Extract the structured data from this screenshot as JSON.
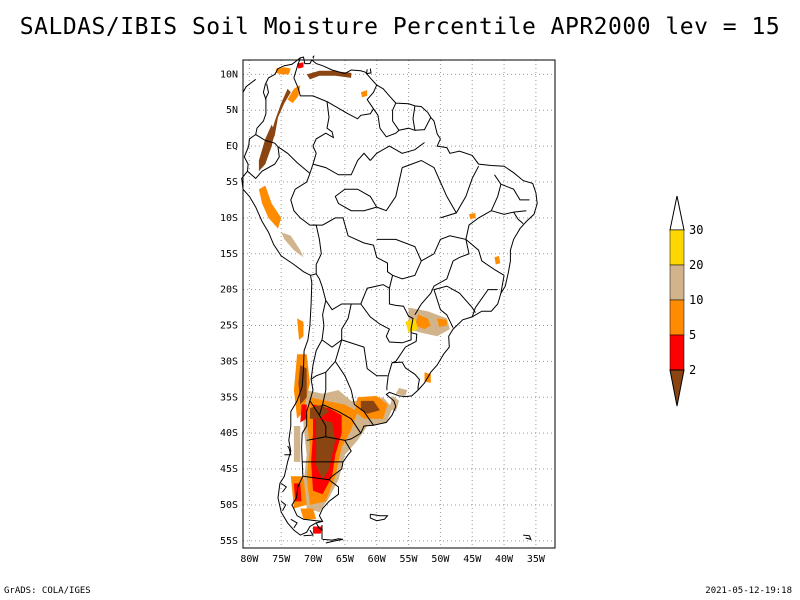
{
  "title": "SALDAS/IBIS Soil Moisture Percentile APR2000 lev = 15",
  "footer": {
    "left": "GrADS: COLA/IGES",
    "right": "2021-05-12-19:18"
  },
  "axes": {
    "lat_ticks": [
      "10N",
      "5N",
      "EQ",
      "5S",
      "10S",
      "15S",
      "20S",
      "25S",
      "30S",
      "35S",
      "40S",
      "45S",
      "50S",
      "55S"
    ],
    "lon_ticks": [
      "80W",
      "75W",
      "70W",
      "65W",
      "60W",
      "55W",
      "50W",
      "45W",
      "40W",
      "35W"
    ],
    "lat_range": [
      -56,
      12
    ],
    "lon_range": [
      -81,
      -32
    ],
    "grid": "dotted"
  },
  "legend": {
    "labels": [
      "30",
      "20",
      "10",
      "5",
      "2"
    ],
    "colors": [
      "#ffffff",
      "#ffd700",
      "#d2b48c",
      "#ff8c00",
      "#ff0000",
      "#8b4513"
    ]
  },
  "colors": {
    "lt2": "#8b4513",
    "r2_5": "#ff0000",
    "r5_10": "#ff8c00",
    "r10_20": "#d2b48c",
    "r20_30": "#ffd700"
  }
}
